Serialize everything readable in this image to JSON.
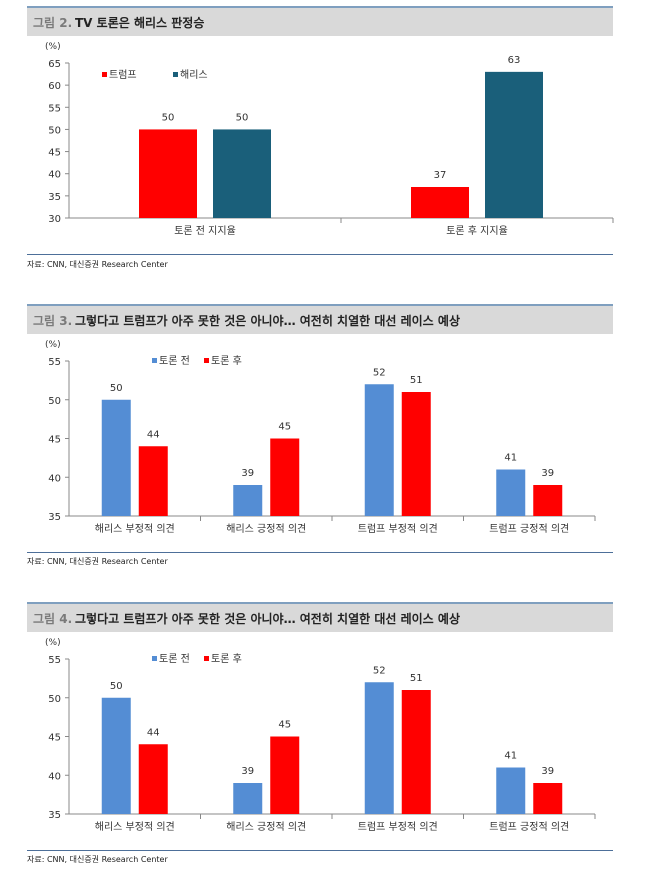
{
  "figures": [
    {
      "number": "그림 2.",
      "title": "TV 토론은 해리스 판정승",
      "source": "자료: CNN, 대신증권 Research Center",
      "chart_data": {
        "type": "bar",
        "unit": "(%)",
        "categories": [
          "토론 전 지지율",
          "토론 후 지지율"
        ],
        "series": [
          {
            "name": "트럼프",
            "color": "#ff0000",
            "values": [
              50,
              37
            ]
          },
          {
            "name": "해리스",
            "color": "#1a5f7a",
            "values": [
              50,
              63
            ]
          }
        ],
        "ylim": [
          30,
          65
        ],
        "yticks": [
          30,
          35,
          40,
          45,
          50,
          55,
          60,
          65
        ],
        "legend_position": "top-left",
        "grid": false
      }
    },
    {
      "number": "그림 3.",
      "title": "그렇다고 트럼프가 아주 못한 것은 아니야… 여전히 치열한 대선 레이스 예상",
      "source": "자료: CNN, 대신증권 Research Center",
      "chart_data": {
        "type": "bar",
        "unit": "(%)",
        "categories": [
          "해리스 부정적 의견",
          "해리스 긍정적 의견",
          "트럼프 부정적 의견",
          "트럼프 긍정적 의견"
        ],
        "series": [
          {
            "name": "토론 전",
            "color": "#548dd4",
            "values": [
              50,
              39,
              52,
              41
            ]
          },
          {
            "name": "토론 후",
            "color": "#ff0000",
            "values": [
              44,
              45,
              51,
              39
            ]
          }
        ],
        "ylim": [
          35,
          55
        ],
        "yticks": [
          35,
          40,
          45,
          50,
          55
        ],
        "legend_position": "top-left",
        "grid": false
      }
    },
    {
      "number": "그림 4.",
      "title": "그렇다고 트럼프가 아주 못한 것은 아니야… 여전히 치열한 대선 레이스 예상",
      "source": "자료: CNN, 대신증권 Research Center",
      "chart_data": {
        "type": "bar",
        "unit": "(%)",
        "categories": [
          "해리스 부정적 의견",
          "해리스 긍정적 의견",
          "트럼프 부정적 의견",
          "트럼프 긍정적 의견"
        ],
        "series": [
          {
            "name": "토론 전",
            "color": "#548dd4",
            "values": [
              50,
              39,
              52,
              41
            ]
          },
          {
            "name": "토론 후",
            "color": "#ff0000",
            "values": [
              44,
              45,
              51,
              39
            ]
          }
        ],
        "ylim": [
          35,
          55
        ],
        "yticks": [
          35,
          40,
          45,
          50,
          55
        ],
        "legend_position": "top-left",
        "grid": false
      }
    }
  ]
}
